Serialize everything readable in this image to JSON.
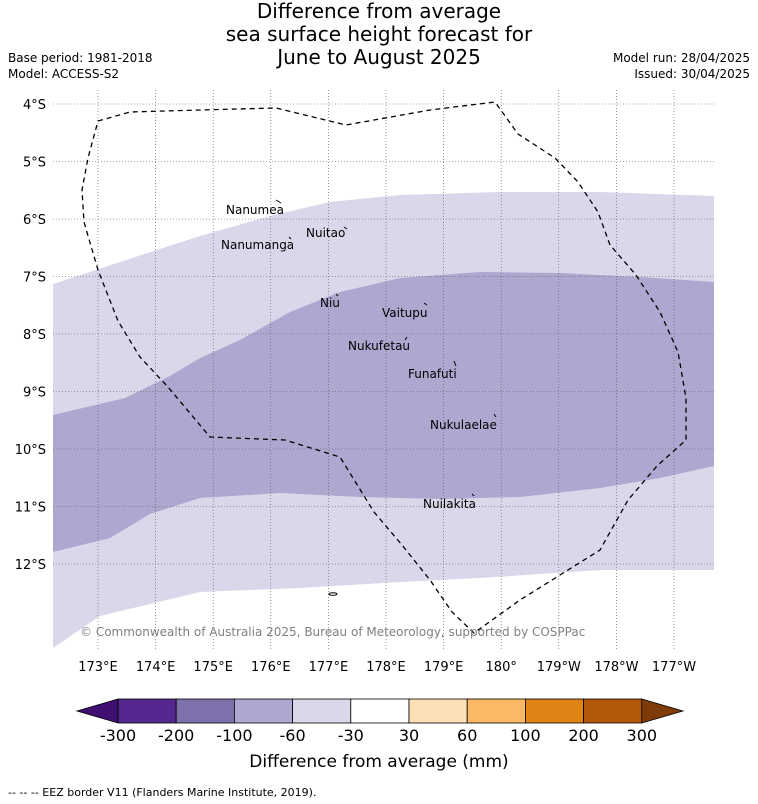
{
  "title": {
    "line1": "Difference from average",
    "line2": "sea surface height forecast for",
    "line3": "June to August 2025"
  },
  "meta": {
    "base_period": "Base period: 1981-2018",
    "model": "Model: ACCESS-S2",
    "model_run": "Model run: 28/04/2025",
    "issued": "Issued: 30/04/2025"
  },
  "copyright": "© Commonwealth of Australia 2025, Bureau of Meteorology, supported by COSPPac",
  "footer": "--  --  -- EEZ border V11 (Flanders Marine Institute, 2019).",
  "map": {
    "lon_ticks": [
      "173°E",
      "174°E",
      "175°E",
      "176°E",
      "177°E",
      "178°E",
      "179°E",
      "180°",
      "179°W",
      "178°W",
      "177°W"
    ],
    "lat_ticks": [
      "4°S",
      "5°S",
      "6°S",
      "7°S",
      "8°S",
      "9°S",
      "10°S",
      "11°S",
      "12°S"
    ],
    "islands": [
      {
        "name": "Nanumea"
      },
      {
        "name": "Nuitao"
      },
      {
        "name": "Nanumanga"
      },
      {
        "name": "Niu"
      },
      {
        "name": "Vaitupu"
      },
      {
        "name": "Nukufetau"
      },
      {
        "name": "Funafuti"
      },
      {
        "name": "Nukulaelae"
      },
      {
        "name": "Nuilakita"
      }
    ]
  },
  "colorbar": {
    "labels": [
      "-300",
      "-200",
      "-100",
      "-60",
      "-30",
      "30",
      "60",
      "100",
      "200",
      "300"
    ],
    "colors": [
      "#3f0f72",
      "#54278f",
      "#7f72ac",
      "#aea8d0",
      "#d8d8ea",
      "#ffffff",
      "#fee0b6",
      "#fdb863",
      "#e08214",
      "#b35806",
      "#7f3b08"
    ],
    "title": "Difference from average (mm)"
  }
}
